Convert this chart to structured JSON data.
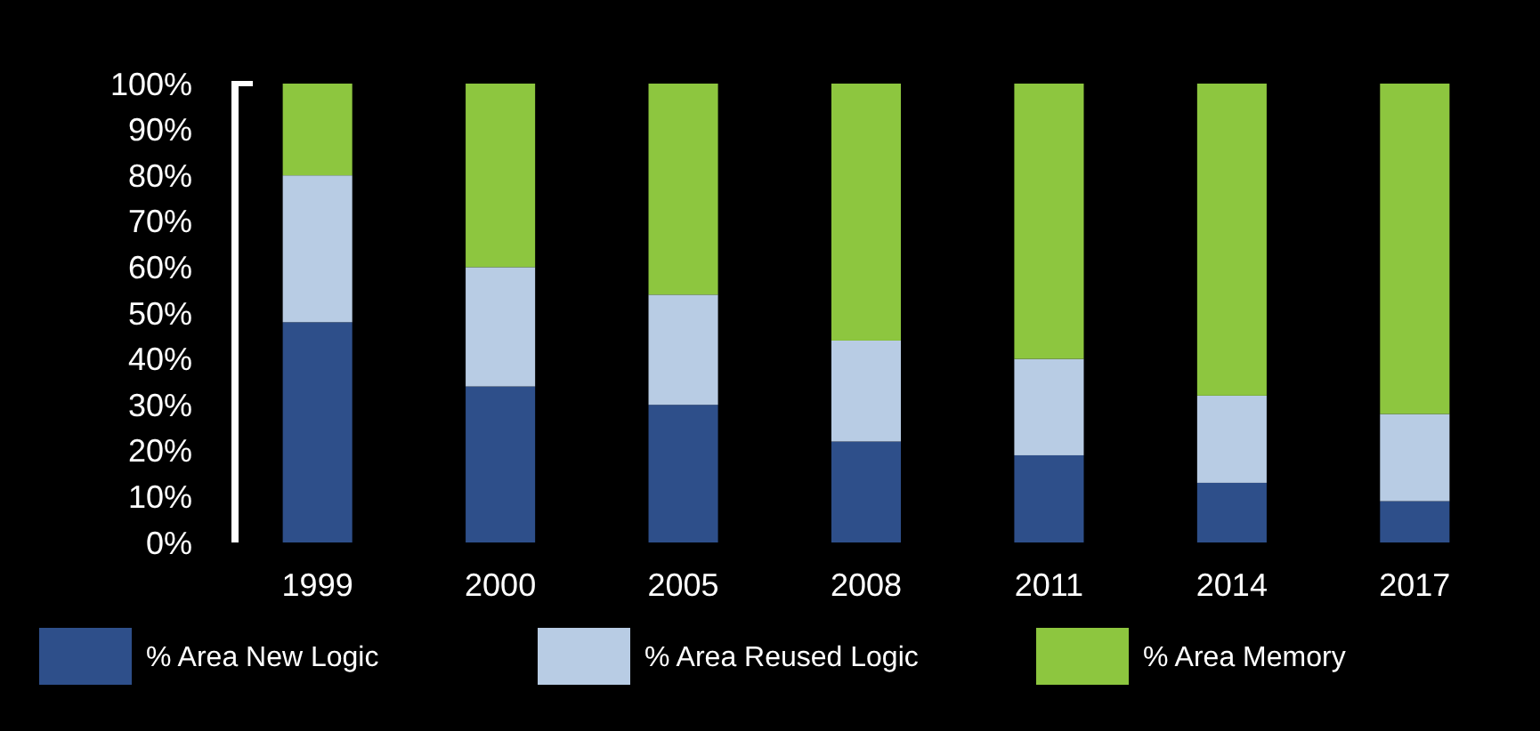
{
  "chart_data": {
    "type": "bar",
    "stacked": true,
    "categories": [
      "1999",
      "2000",
      "2005",
      "2008",
      "2011",
      "2014",
      "2017"
    ],
    "series": [
      {
        "name": "% Area New Logic",
        "color": "#2e4f8a",
        "values": [
          48,
          34,
          30,
          22,
          19,
          13,
          9
        ]
      },
      {
        "name": "% Area Reused Logic",
        "color": "#b8cce4",
        "values": [
          32,
          26,
          24,
          22,
          21,
          19,
          19
        ]
      },
      {
        "name": "% Area Memory",
        "color": "#8dc63f",
        "values": [
          20,
          40,
          46,
          56,
          60,
          68,
          72
        ]
      }
    ],
    "ylim": [
      0,
      100
    ],
    "yticks": [
      {
        "value": 0,
        "label": "0%"
      },
      {
        "value": 10,
        "label": "10%"
      },
      {
        "value": 20,
        "label": "20%"
      },
      {
        "value": 30,
        "label": "30%"
      },
      {
        "value": 40,
        "label": "40%"
      },
      {
        "value": 50,
        "label": "50%"
      },
      {
        "value": 60,
        "label": "60%"
      },
      {
        "value": 70,
        "label": "70%"
      },
      {
        "value": 80,
        "label": "80%"
      },
      {
        "value": 90,
        "label": "90%"
      },
      {
        "value": 100,
        "label": "100%"
      }
    ],
    "grid": false,
    "legend": "bottom"
  }
}
